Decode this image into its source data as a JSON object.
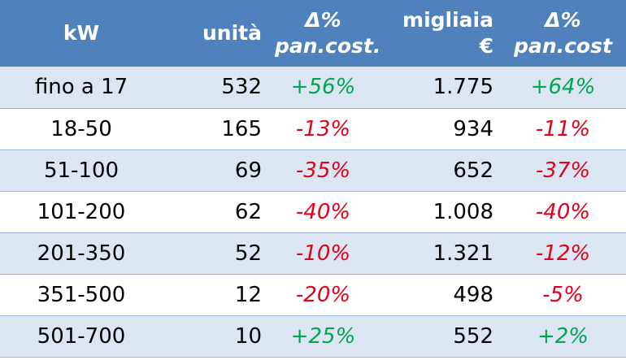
{
  "table": {
    "header": [
      [
        "kW"
      ],
      [
        "unità"
      ],
      [
        "Δ%",
        "pan.cost."
      ],
      [
        "migliaia",
        "€"
      ],
      [
        "Δ%",
        "pan.cost"
      ]
    ],
    "rows": [
      [
        "fino a 17",
        "532",
        "+56%",
        "1.775",
        "+64%"
      ],
      [
        "18-50",
        "165",
        "-13%",
        "934",
        "-11%"
      ],
      [
        "51-100",
        "69",
        "-35%",
        "652",
        "-37%"
      ],
      [
        "101-200",
        "62",
        "-40%",
        "1.008",
        "-40%"
      ],
      [
        "201-350",
        "52",
        "-10%",
        "1.321",
        "-12%"
      ],
      [
        "351-500",
        "12",
        "-20%",
        "498",
        "-5%"
      ],
      [
        "501-700",
        "10",
        "+25%",
        "552",
        "+2%"
      ]
    ]
  }
}
